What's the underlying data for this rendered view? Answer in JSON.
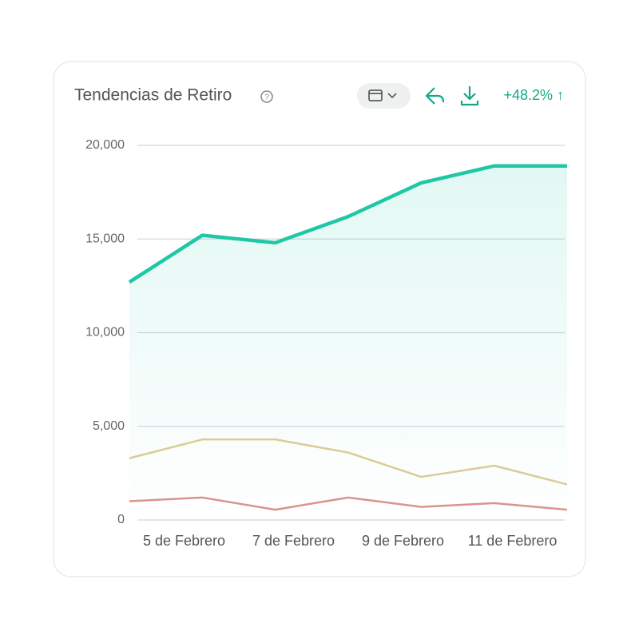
{
  "header": {
    "title": "Tendencias de Retiro",
    "change": "+48.2% ↑"
  },
  "chart_data": {
    "type": "line",
    "x": [
      0,
      1,
      2,
      3,
      4,
      5,
      6
    ],
    "xlim": [
      0,
      6
    ],
    "xticks": [
      {
        "value": 0.75,
        "label": "5 de Febrero"
      },
      {
        "value": 2.25,
        "label": "7 de Febrero"
      },
      {
        "value": 3.75,
        "label": "9 de Febrero"
      },
      {
        "value": 5.25,
        "label": "11 de Febrero"
      }
    ],
    "ylim": [
      0,
      20000
    ],
    "yticks": [
      0,
      {
        "value": 5000,
        "label": "5,000"
      },
      {
        "value": 10000,
        "label": "10,000"
      },
      {
        "value": 15000,
        "label": "15,000"
      },
      {
        "value": 20000,
        "label": "20,000"
      }
    ],
    "grid": true,
    "series": [
      {
        "color": "#1ec8a5",
        "area": true,
        "values": [
          12700,
          15200,
          14800,
          16200,
          18000,
          18900,
          18900
        ]
      },
      {
        "color": "#dccb94",
        "values": [
          3300,
          4300,
          4300,
          3600,
          2300,
          2900,
          1900
        ]
      },
      {
        "color": "#d9958c",
        "values": [
          1000,
          1200,
          550,
          1200,
          700,
          900,
          550
        ]
      }
    ]
  }
}
